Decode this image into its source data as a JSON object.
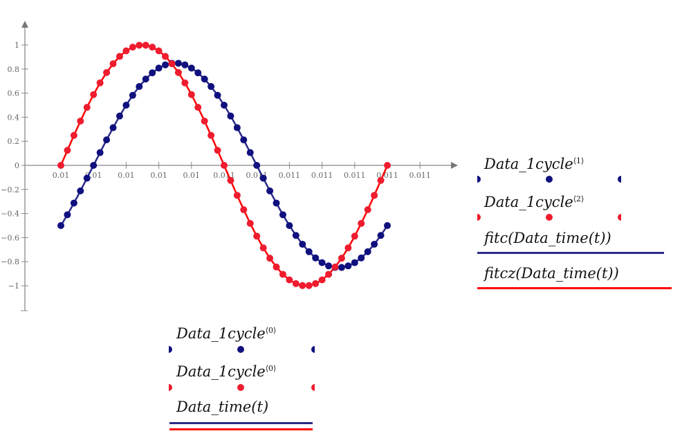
{
  "chart_data": {
    "type": "scatter",
    "title": "",
    "xlabel": "",
    "ylabel": "",
    "xlim": [
      0.0099,
      0.0112
    ],
    "ylim": [
      -1.2,
      1.2
    ],
    "x_ticks": [
      0.01,
      0.0101,
      0.0102,
      0.0103,
      0.0104,
      0.0105,
      0.0106,
      0.0107,
      0.0108,
      0.0109,
      0.011,
      0.0111
    ],
    "x_tick_labels": [
      "0.01",
      "0.01",
      "0.01",
      "0.01",
      "0.01",
      "0.011",
      "0.011",
      "0.011",
      "0.011",
      "0.011",
      "0.011",
      "0.011"
    ],
    "y_ticks": [
      1,
      0.8,
      0.6,
      0.4,
      0.2,
      0,
      -0.2,
      -0.4,
      -0.6,
      -0.8,
      -1
    ],
    "y_tick_labels": [
      "1",
      "0.8",
      "0.6",
      "0.4",
      "0.2",
      "0",
      "−0.2",
      "−0.4",
      "−0.6",
      "−0.8",
      "−1"
    ],
    "grid": false,
    "x": [
      0.01,
      0.01002,
      0.01004,
      0.01006,
      0.01008,
      0.0101,
      0.01012,
      0.01014,
      0.01016,
      0.01018,
      0.0102,
      0.01022,
      0.01024,
      0.01026,
      0.01028,
      0.0103,
      0.01032,
      0.01034,
      0.01036,
      0.01038,
      0.0104,
      0.01042,
      0.01044,
      0.01046,
      0.01048,
      0.0105,
      0.01052,
      0.01054,
      0.01056,
      0.01058,
      0.0106,
      0.01062,
      0.01064,
      0.01066,
      0.01068,
      0.0107,
      0.01072,
      0.01074,
      0.01076,
      0.01078,
      0.0108,
      0.01082,
      0.01084,
      0.01086,
      0.01088,
      0.0109,
      0.01092,
      0.01094,
      0.01096,
      0.01098,
      0.011
    ],
    "series": [
      {
        "name": "Data_1cycle⟨1⟩",
        "style": "dots",
        "color": "#10107e",
        "values": [
          -0.5,
          -0.41,
          -0.313,
          -0.212,
          -0.106,
          0,
          0.106,
          0.212,
          0.313,
          0.41,
          0.5,
          0.582,
          0.655,
          0.717,
          0.769,
          0.808,
          0.835,
          0.848,
          0.848,
          0.835,
          0.808,
          0.769,
          0.717,
          0.655,
          0.582,
          0.5,
          0.41,
          0.313,
          0.212,
          0.106,
          0,
          -0.106,
          -0.212,
          -0.313,
          -0.41,
          -0.5,
          -0.582,
          -0.655,
          -0.717,
          -0.769,
          -0.808,
          -0.835,
          -0.848,
          -0.848,
          -0.835,
          -0.808,
          -0.769,
          -0.717,
          -0.655,
          -0.582,
          -0.5
        ]
      },
      {
        "name": "Data_1cycle⟨2⟩",
        "style": "dots",
        "color": "#ee1c2e",
        "values": [
          0,
          0.125,
          0.249,
          0.368,
          0.482,
          0.588,
          0.685,
          0.771,
          0.844,
          0.905,
          0.951,
          0.982,
          0.998,
          0.998,
          0.982,
          0.951,
          0.905,
          0.844,
          0.771,
          0.685,
          0.588,
          0.482,
          0.368,
          0.249,
          0.125,
          0,
          -0.125,
          -0.249,
          -0.368,
          -0.482,
          -0.588,
          -0.685,
          -0.771,
          -0.844,
          -0.905,
          -0.951,
          -0.982,
          -0.998,
          -0.998,
          -0.982,
          -0.951,
          -0.905,
          -0.844,
          -0.771,
          -0.685,
          -0.588,
          -0.482,
          -0.368,
          -0.249,
          -0.125,
          0
        ]
      },
      {
        "name": "fitc(Data_time(t))",
        "style": "line",
        "color": "#2a2a8a",
        "same_as": 0
      },
      {
        "name": "fitcz(Data_time(t))",
        "style": "line",
        "color": "#ff0000",
        "same_as": 1
      }
    ]
  },
  "legend_y": {
    "items": [
      {
        "name": "Data_1cycle",
        "sup": "⟨1⟩",
        "color": "#10107e"
      },
      {
        "name": "Data_1cycle",
        "sup": "⟨2⟩",
        "color": "#ee1c2e"
      },
      {
        "label": "fitc(Data_time(t))",
        "color": "#2a2a8a"
      },
      {
        "label": "fitcz(Data_time(t))",
        "color": "#ff0000"
      }
    ]
  },
  "legend_x": {
    "items": [
      {
        "name": "Data_1cycle",
        "sup": "⟨0⟩",
        "color": "#10107e"
      },
      {
        "name": "Data_1cycle",
        "sup": "⟨0⟩",
        "color": "#ee1c2e"
      },
      {
        "label": "Data_time(t)",
        "colors": [
          "#2a2a8a",
          "#ff0000"
        ]
      }
    ]
  }
}
